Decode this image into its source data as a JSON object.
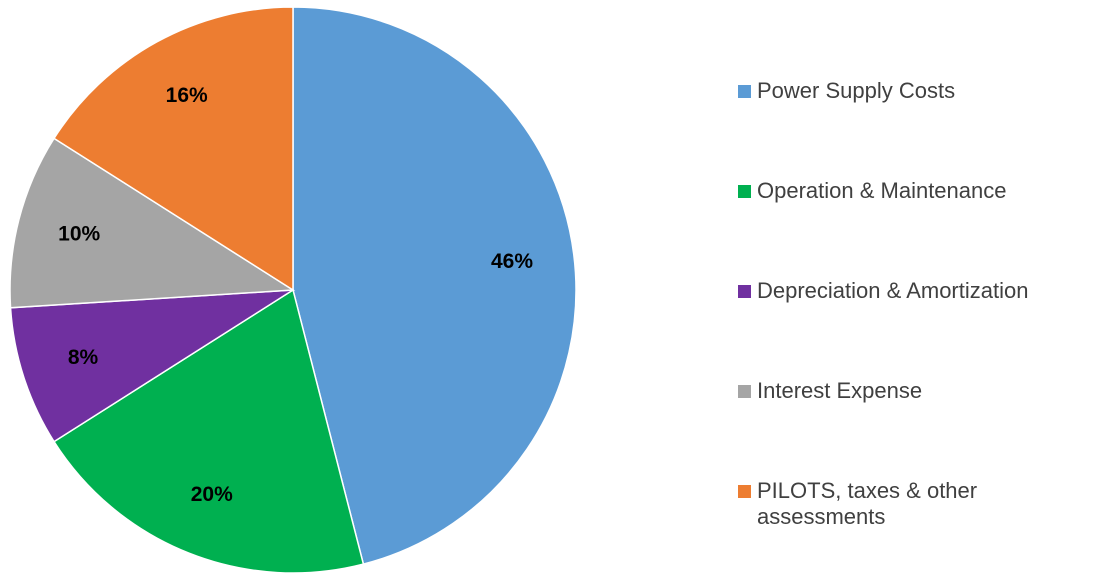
{
  "chart_data": {
    "type": "pie",
    "categories": [
      "Power Supply Costs",
      "Operation & Maintenance",
      "Depreciation & Amortization",
      "Interest Expense",
      "PILOTS, taxes & other assessments"
    ],
    "values": [
      46,
      20,
      8,
      10,
      16
    ],
    "value_labels": [
      "46%",
      "20%",
      "8%",
      "10%",
      "16%"
    ],
    "colors": [
      "#5b9bd5",
      "#00b050",
      "#7030a0",
      "#a5a5a5",
      "#ed7d31"
    ],
    "legend": "right"
  }
}
